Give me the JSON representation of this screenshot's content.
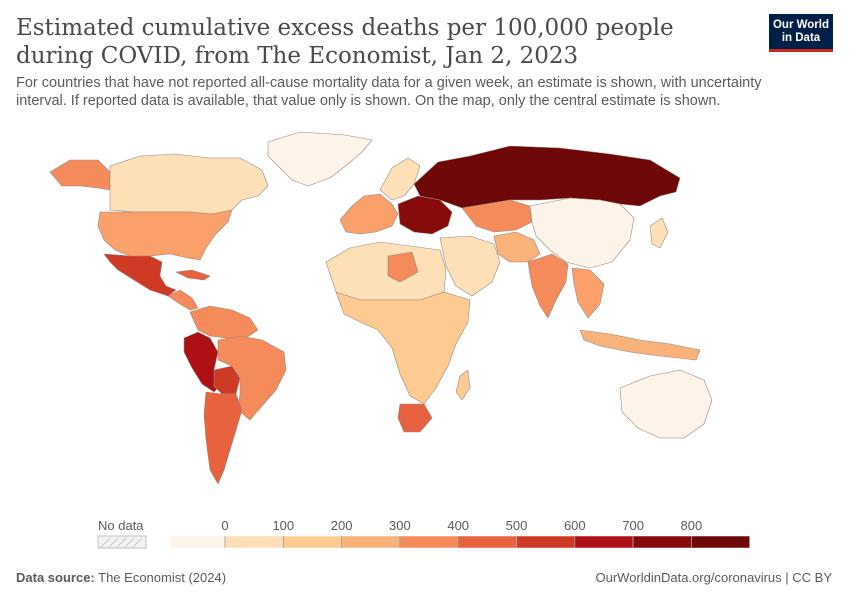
{
  "header": {
    "title": "Estimated cumulative excess deaths per 100,000 people during COVID, from The Economist, Jan 2, 2023",
    "subtitle": "For countries that have not reported all-cause mortality data for a given week, an estimate is shown, with uncertainty interval. If reported data is available, that value only is shown. On the map, only the central estimate is shown.",
    "logo_line1": "Our World",
    "logo_line2": "in Data"
  },
  "legend": {
    "no_data_label": "No data",
    "tick_labels": [
      "0",
      "100",
      "200",
      "300",
      "400",
      "500",
      "600",
      "700",
      "800"
    ],
    "colors": [
      "#fef3e8",
      "#fde0b8",
      "#fdca92",
      "#f9b27a",
      "#f58b5a",
      "#e8623f",
      "#cf3a26",
      "#ad1115",
      "#880b0b",
      "#6e0707"
    ]
  },
  "colors": {
    "land_no_data": "#ffffff",
    "border": "#8a8a8a",
    "brand": "#002147",
    "brand_accent": "#ce261e"
  },
  "footer": {
    "source_label": "Data source:",
    "source_value": "The Economist (2024)",
    "right_text": "OurWorldinData.org/coronavirus | CC BY"
  }
}
